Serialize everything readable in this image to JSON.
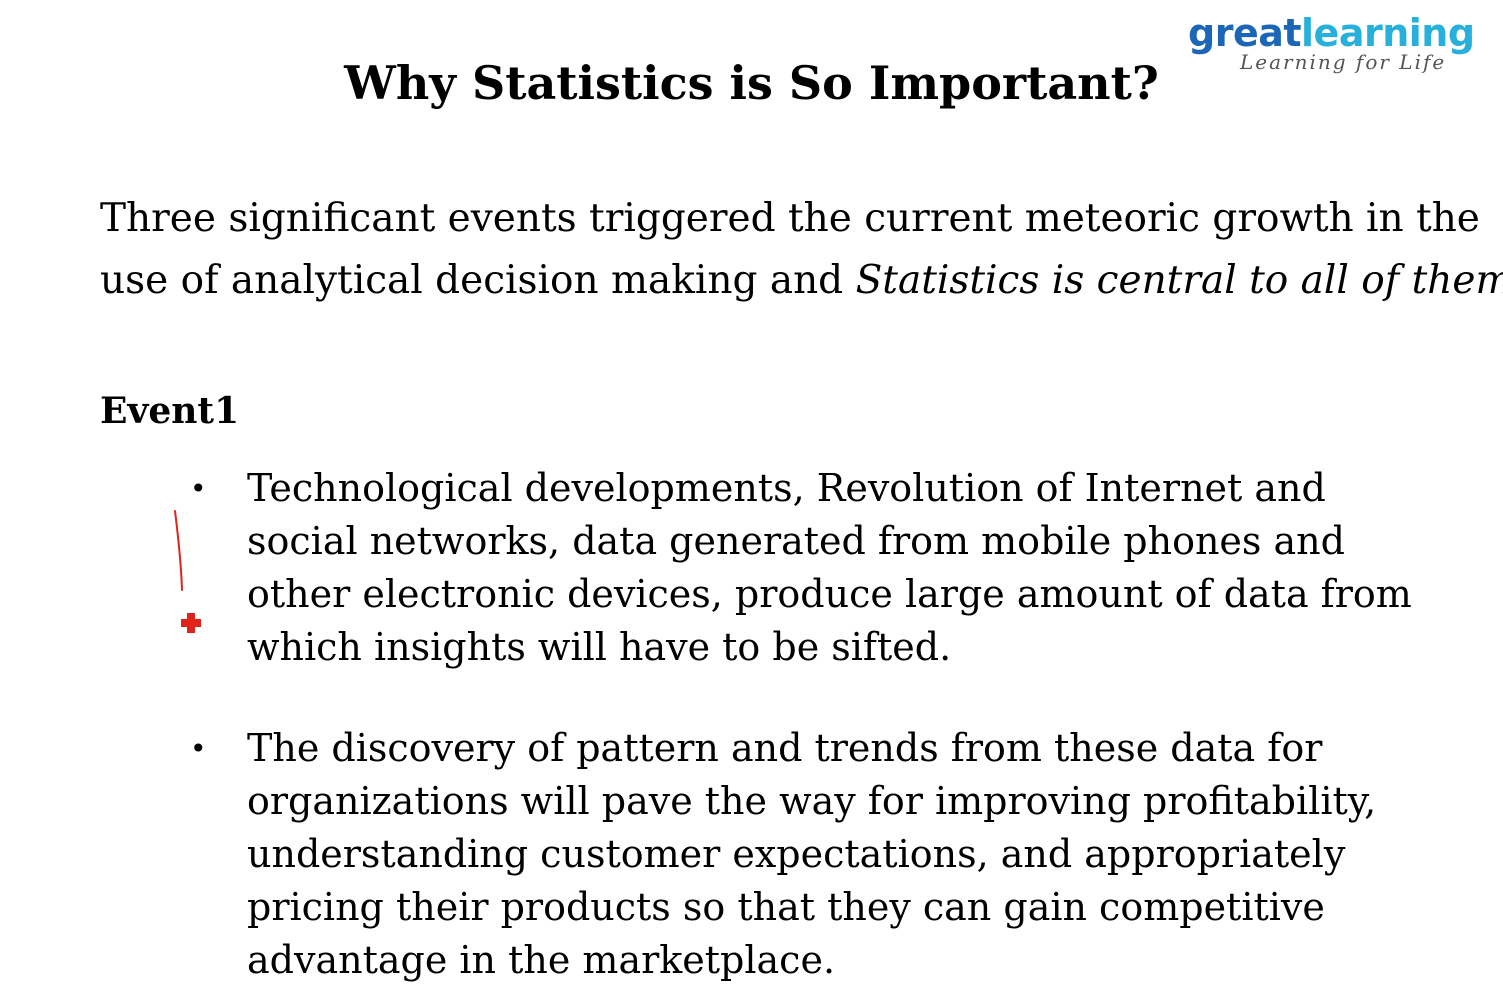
{
  "logo": {
    "brand_part1": "great",
    "brand_part2": "learning",
    "tagline": "Learning for Life",
    "color_great": "#1b66b6",
    "color_learning": "#27b0dc"
  },
  "title": "Why Statistics is So Important?",
  "intro": {
    "line1": "Three significant events triggered the current meteoric growth in the",
    "line2_plain": "use of analytical decision making and ",
    "line2_italic": "Statistics is central to all of them."
  },
  "event_heading": "Event1",
  "bullets": [
    {
      "text": "Technological developments, Revolution of Internet and\nsocial networks, data generated from mobile phones and\nother electronic devices, produce large amount of data from\nwhich insights will have to be sifted."
    },
    {
      "text": "The discovery of pattern and trends from these data for\norganizations will pave the way for improving profitability,\nunderstanding customer expectations, and appropriately\npricing their products so that they can gain competitive\nadvantage in the marketplace."
    }
  ],
  "annotation": {
    "pen_color": "#e0241b",
    "cursor_icon": "red-cross-cursor-icon"
  }
}
